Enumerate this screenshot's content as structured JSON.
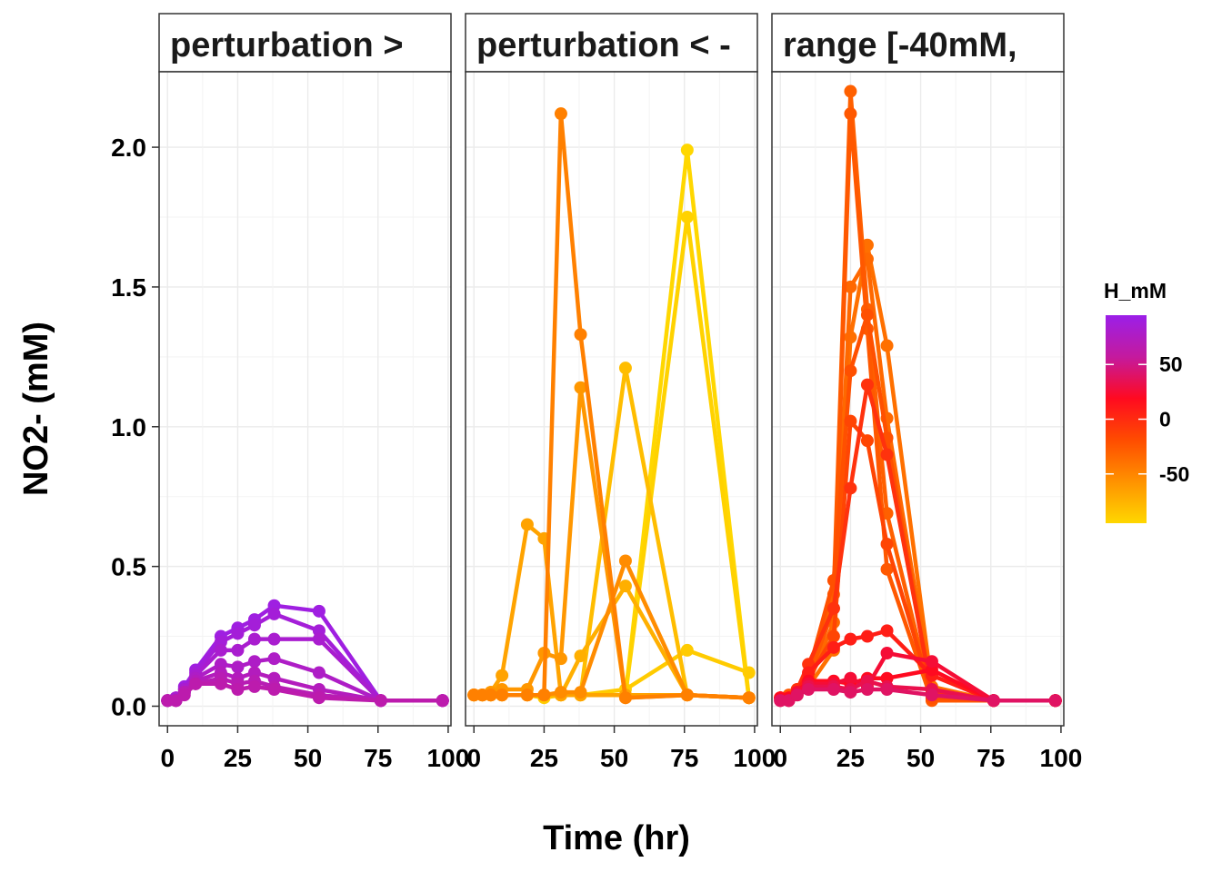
{
  "chart_data": {
    "type": "line",
    "xlabel": "Time (hr)",
    "ylabel": "NO2- (mM)",
    "xlim": [
      -3,
      101
    ],
    "ylim": [
      -0.07,
      2.27
    ],
    "x_ticks": [
      0,
      25,
      50,
      75,
      100
    ],
    "x_tick_labels": [
      "0",
      "25",
      "50",
      "75",
      "100"
    ],
    "y_ticks": [
      0.0,
      0.5,
      1.0,
      1.5,
      2.0
    ],
    "y_tick_labels": [
      "0.0",
      "0.5",
      "1.0",
      "1.5",
      "2.0"
    ],
    "grid": true,
    "legend": {
      "title": "H_mM",
      "placement": "right",
      "type": "colorbar",
      "range": [
        -95,
        95
      ],
      "breaks": [
        50,
        0,
        -50
      ],
      "break_labels": [
        "50",
        "0",
        "-50"
      ],
      "colors": [
        "#9b1fe8",
        "#c41a9e",
        "#ff0a20",
        "#ff4c00",
        "#ff9200",
        "#ffd700"
      ]
    },
    "panels": [
      {
        "strip": "perturbation >",
        "series": [
          {
            "H": 90,
            "x": [
              0,
              3,
              6,
              10,
              19,
              25,
              31,
              38,
              54,
              76,
              98
            ],
            "y": [
              0.02,
              0.03,
              0.07,
              0.13,
              0.25,
              0.28,
              0.31,
              0.36,
              0.34,
              0.02,
              0.02
            ]
          },
          {
            "H": 84,
            "x": [
              0,
              3,
              6,
              10,
              19,
              25,
              31,
              38,
              54,
              76,
              98
            ],
            "y": [
              0.02,
              0.03,
              0.06,
              0.12,
              0.23,
              0.26,
              0.29,
              0.33,
              0.27,
              0.02,
              0.02
            ]
          },
          {
            "H": 78,
            "x": [
              0,
              3,
              6,
              10,
              19,
              25,
              31,
              38,
              54,
              76,
              98
            ],
            "y": [
              0.02,
              0.03,
              0.06,
              0.11,
              0.2,
              0.2,
              0.24,
              0.24,
              0.24,
              0.02,
              0.02
            ]
          },
          {
            "H": 72,
            "x": [
              0,
              3,
              6,
              10,
              19,
              25,
              31,
              38,
              54,
              76,
              98
            ],
            "y": [
              0.02,
              0.02,
              0.05,
              0.1,
              0.15,
              0.14,
              0.16,
              0.17,
              0.12,
              0.02,
              0.02
            ]
          },
          {
            "H": 66,
            "x": [
              0,
              3,
              6,
              10,
              19,
              25,
              31,
              38,
              54,
              76,
              98
            ],
            "y": [
              0.02,
              0.02,
              0.05,
              0.09,
              0.12,
              0.1,
              0.12,
              0.1,
              0.06,
              0.02,
              0.02
            ]
          },
          {
            "H": 60,
            "x": [
              0,
              3,
              6,
              10,
              19,
              25,
              31,
              38,
              54,
              76,
              98
            ],
            "y": [
              0.02,
              0.02,
              0.05,
              0.08,
              0.1,
              0.08,
              0.09,
              0.07,
              0.04,
              0.02,
              0.02
            ]
          },
          {
            "H": 55,
            "x": [
              0,
              3,
              6,
              10,
              19,
              25,
              31,
              38,
              54,
              76,
              98
            ],
            "y": [
              0.02,
              0.02,
              0.04,
              0.08,
              0.08,
              0.06,
              0.07,
              0.06,
              0.03,
              0.02,
              0.02
            ]
          }
        ]
      },
      {
        "strip": "perturbation < -",
        "series": [
          {
            "H": -95,
            "x": [
              0,
              3,
              6,
              10,
              19,
              25,
              31,
              38,
              54,
              76,
              98
            ],
            "y": [
              0.04,
              0.04,
              0.04,
              0.04,
              0.04,
              0.04,
              0.04,
              0.04,
              0.04,
              1.99,
              0.03
            ]
          },
          {
            "H": -92,
            "x": [
              0,
              3,
              6,
              10,
              19,
              25,
              31,
              38,
              54,
              76,
              98
            ],
            "y": [
              0.04,
              0.04,
              0.04,
              0.04,
              0.04,
              0.04,
              0.04,
              0.04,
              0.04,
              1.75,
              0.03
            ]
          },
          {
            "H": -88,
            "x": [
              0,
              3,
              6,
              10,
              19,
              25,
              31,
              38,
              54,
              76,
              98
            ],
            "y": [
              0.04,
              0.04,
              0.04,
              0.04,
              0.04,
              0.03,
              0.04,
              0.04,
              0.06,
              0.2,
              0.12
            ]
          },
          {
            "H": -80,
            "x": [
              0,
              3,
              6,
              10,
              19,
              25,
              31,
              38,
              54,
              76,
              98
            ],
            "y": [
              0.04,
              0.04,
              0.04,
              0.04,
              0.04,
              0.04,
              0.04,
              0.04,
              1.21,
              0.04,
              0.03
            ]
          },
          {
            "H": -72,
            "x": [
              0,
              3,
              6,
              10,
              19,
              25,
              31,
              38,
              54,
              76,
              98
            ],
            "y": [
              0.04,
              0.04,
              0.04,
              0.04,
              0.04,
              0.04,
              0.04,
              0.18,
              0.43,
              0.04,
              0.03
            ]
          },
          {
            "H": -65,
            "x": [
              0,
              3,
              6,
              10,
              19,
              25,
              31,
              38,
              54,
              76,
              98
            ],
            "y": [
              0.04,
              0.04,
              0.05,
              0.11,
              0.65,
              0.6,
              0.04,
              0.04,
              0.04,
              0.04,
              0.03
            ]
          },
          {
            "H": -58,
            "x": [
              0,
              3,
              6,
              10,
              19,
              25,
              31,
              38,
              54,
              76,
              98
            ],
            "y": [
              0.04,
              0.04,
              0.05,
              0.06,
              0.06,
              0.19,
              0.17,
              1.14,
              0.03,
              0.04,
              0.03
            ]
          },
          {
            "H": -52,
            "x": [
              0,
              3,
              6,
              10,
              19,
              25,
              31,
              38,
              54,
              76,
              98
            ],
            "y": [
              0.04,
              0.04,
              0.04,
              0.04,
              0.04,
              0.04,
              0.05,
              0.05,
              0.52,
              0.04,
              0.03
            ]
          },
          {
            "H": -46,
            "x": [
              0,
              3,
              6,
              10,
              19,
              25,
              31,
              38,
              54,
              76,
              98
            ],
            "y": [
              0.04,
              0.04,
              0.04,
              0.04,
              0.04,
              0.04,
              2.12,
              1.33,
              0.03,
              0.04,
              0.03
            ]
          }
        ]
      },
      {
        "strip": "range [-40mM,",
        "series": [
          {
            "H": -38,
            "x": [
              0,
              3,
              6,
              10,
              19,
              25,
              31,
              38,
              54,
              76,
              98
            ],
            "y": [
              0.03,
              0.03,
              0.04,
              0.07,
              0.2,
              1.32,
              1.65,
              1.29,
              0.07,
              0.02,
              0.02
            ]
          },
          {
            "H": -34,
            "x": [
              0,
              3,
              6,
              10,
              19,
              25,
              31,
              38,
              54,
              76,
              98
            ],
            "y": [
              0.03,
              0.03,
              0.05,
              0.08,
              0.3,
              1.5,
              1.6,
              1.03,
              0.05,
              0.02,
              0.02
            ]
          },
          {
            "H": -30,
            "x": [
              0,
              3,
              6,
              10,
              19,
              25,
              31,
              38,
              54,
              76,
              98
            ],
            "y": [
              0.03,
              0.03,
              0.05,
              0.09,
              0.4,
              2.2,
              1.42,
              0.69,
              0.03,
              0.02,
              0.02
            ]
          },
          {
            "H": -26,
            "x": [
              0,
              3,
              6,
              10,
              19,
              25,
              31,
              38,
              54,
              76,
              98
            ],
            "y": [
              0.03,
              0.04,
              0.05,
              0.1,
              0.35,
              2.12,
              1.35,
              0.49,
              0.02,
              0.02,
              0.02
            ]
          },
          {
            "H": -22,
            "x": [
              0,
              3,
              6,
              10,
              19,
              25,
              31,
              38,
              54,
              76,
              98
            ],
            "y": [
              0.03,
              0.03,
              0.06,
              0.12,
              0.45,
              1.2,
              1.4,
              0.96,
              0.03,
              0.02,
              0.02
            ]
          },
          {
            "H": -18,
            "x": [
              0,
              3,
              6,
              10,
              19,
              25,
              31,
              38,
              54,
              76,
              98
            ],
            "y": [
              0.03,
              0.03,
              0.05,
              0.1,
              0.25,
              1.02,
              0.95,
              0.58,
              0.04,
              0.02,
              0.02
            ]
          },
          {
            "H": -12,
            "x": [
              0,
              3,
              6,
              10,
              19,
              25,
              31,
              38,
              54,
              76,
              98
            ],
            "y": [
              0.03,
              0.03,
              0.06,
              0.15,
              0.35,
              0.78,
              1.15,
              0.9,
              0.05,
              0.02,
              0.02
            ]
          },
          {
            "H": -6,
            "x": [
              0,
              3,
              6,
              10,
              19,
              25,
              31,
              38,
              54,
              76,
              98
            ],
            "y": [
              0.03,
              0.03,
              0.05,
              0.12,
              0.21,
              0.24,
              0.25,
              0.27,
              0.11,
              0.02,
              0.02
            ]
          },
          {
            "H": 0,
            "x": [
              0,
              3,
              6,
              10,
              19,
              25,
              31,
              38,
              54,
              76,
              98
            ],
            "y": [
              0.03,
              0.03,
              0.05,
              0.09,
              0.09,
              0.08,
              0.1,
              0.1,
              0.13,
              0.02,
              0.02
            ]
          },
          {
            "H": 8,
            "x": [
              0,
              3,
              6,
              10,
              19,
              25,
              31,
              38,
              54,
              76,
              98
            ],
            "y": [
              0.02,
              0.02,
              0.05,
              0.08,
              0.08,
              0.1,
              0.07,
              0.19,
              0.16,
              0.02,
              0.02
            ]
          },
          {
            "H": 16,
            "x": [
              0,
              3,
              6,
              10,
              19,
              25,
              31,
              38,
              54,
              76,
              98
            ],
            "y": [
              0.02,
              0.02,
              0.04,
              0.07,
              0.07,
              0.06,
              0.09,
              0.07,
              0.06,
              0.02,
              0.02
            ]
          },
          {
            "H": 24,
            "x": [
              0,
              3,
              6,
              10,
              19,
              25,
              31,
              38,
              54,
              76,
              98
            ],
            "y": [
              0.02,
              0.02,
              0.04,
              0.06,
              0.06,
              0.05,
              0.06,
              0.06,
              0.04,
              0.02,
              0.02
            ]
          }
        ]
      }
    ]
  }
}
